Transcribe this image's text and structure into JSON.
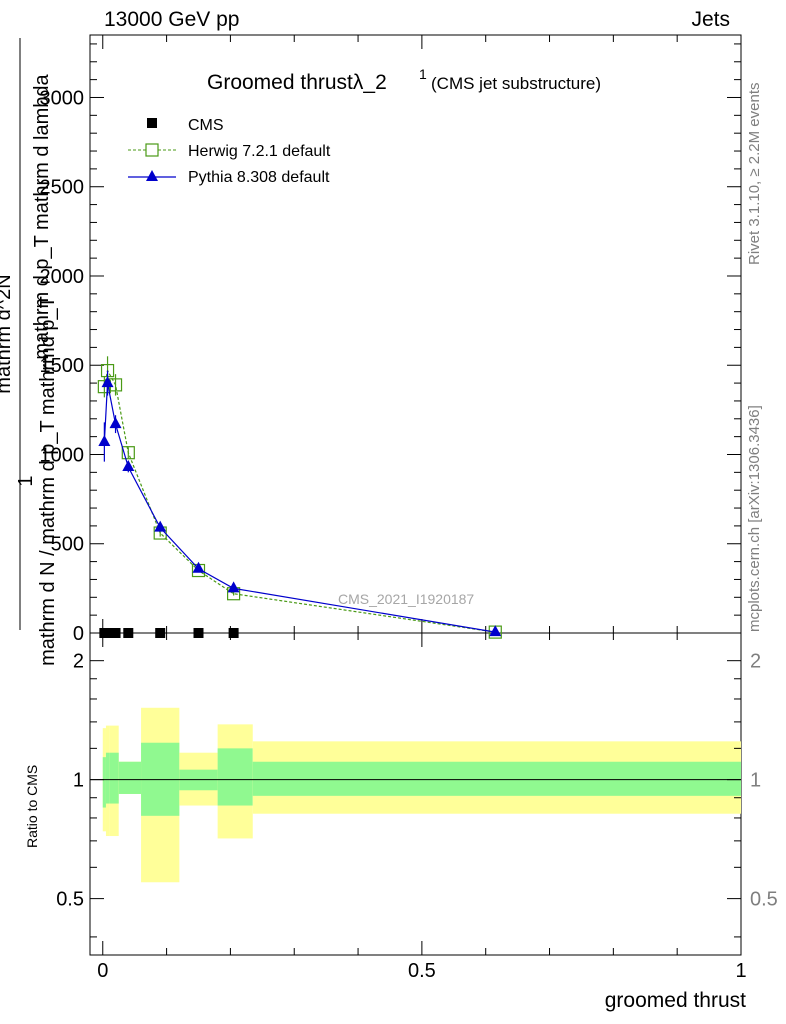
{
  "header": {
    "left": "13000 GeV pp",
    "right": "Jets"
  },
  "side": {
    "rivet": "Rivet 3.1.10, ≥ 2.2M events",
    "mcplots": "mcplots.cern.ch [arXiv:1306.3436]"
  },
  "chart_data": [
    {
      "type": "line",
      "title_main": "Groomed thrust",
      "title_lambda": "λ_2",
      "title_sup": "1",
      "title_paren": "(CMS jet substructure)",
      "ylabel_numer_top": "1",
      "ylabel_numer_bottom": "mathrm d N / mathrm d p_T mathrmd p_T",
      "ylabel_denom_top": "mathrm d^2N",
      "ylabel_denom_bottom": "mathrm d p_T mathrm d lambda",
      "watermark": "CMS_2021_I1920187",
      "xlim": [
        -0.02,
        1.0
      ],
      "ylim": [
        0,
        3350
      ],
      "yticks": [
        0,
        500,
        1000,
        1500,
        2000,
        2500,
        3000
      ],
      "ytick_labels": [
        "0",
        "500",
        "1000",
        "1500",
        "2000",
        "2500",
        "3000"
      ],
      "legend_position": "top-left",
      "series": [
        {
          "name": "CMS",
          "color": "#000000",
          "marker": "filled-square",
          "x": [
            0.0025,
            0.0075,
            0.0125,
            0.02,
            0.04,
            0.09,
            0.15,
            0.205
          ],
          "y": [
            0,
            0,
            0,
            0,
            0,
            0,
            0,
            0
          ]
        },
        {
          "name": "Herwig 7.2.1 default",
          "color": "#4a9a16",
          "marker": "open-square",
          "x": [
            0.0025,
            0.0075,
            0.02,
            0.04,
            0.09,
            0.15,
            0.205,
            0.615
          ],
          "y": [
            1380,
            1470,
            1390,
            1010,
            560,
            350,
            220,
            5
          ],
          "yerr": [
            60,
            80,
            60,
            30,
            20,
            10,
            10,
            2
          ]
        },
        {
          "name": "Pythia 8.308 default",
          "color": "#0000cc",
          "marker": "filled-triangle",
          "x": [
            0.0025,
            0.0075,
            0.02,
            0.04,
            0.09,
            0.15,
            0.205,
            0.615
          ],
          "y": [
            1070,
            1400,
            1170,
            930,
            590,
            360,
            250,
            5
          ],
          "yerr": [
            110,
            70,
            50,
            30,
            20,
            10,
            10,
            2
          ]
        }
      ]
    },
    {
      "type": "area",
      "ylabel": "Ratio to CMS",
      "xlabel": "groomed thrust",
      "xlim": [
        -0.02,
        1.0
      ],
      "ylim": [
        0.36,
        2.35
      ],
      "log_y": true,
      "yticks": [
        0.5,
        1,
        2
      ],
      "ytick_labels": [
        "0.5",
        "1",
        "2"
      ],
      "xticks": [
        0,
        0.5,
        1
      ],
      "xtick_labels": [
        "0",
        "0.5",
        "1"
      ],
      "reference_line": 1,
      "band_colors": {
        "stat": "#90f990",
        "total": "#ffff99"
      },
      "bins": [
        {
          "x0": 0.0,
          "x1": 0.005,
          "inner": [
            0.85,
            1.14
          ],
          "outer": [
            0.74,
            1.35
          ]
        },
        {
          "x0": 0.005,
          "x1": 0.01,
          "inner": [
            0.87,
            1.17
          ],
          "outer": [
            0.72,
            1.37
          ]
        },
        {
          "x0": 0.01,
          "x1": 0.025,
          "inner": [
            0.87,
            1.17
          ],
          "outer": [
            0.72,
            1.37
          ]
        },
        {
          "x0": 0.025,
          "x1": 0.06,
          "inner": [
            0.92,
            1.11
          ],
          "outer": [
            0.92,
            1.11
          ]
        },
        {
          "x0": 0.06,
          "x1": 0.12,
          "inner": [
            0.81,
            1.24
          ],
          "outer": [
            0.55,
            1.52
          ]
        },
        {
          "x0": 0.12,
          "x1": 0.18,
          "inner": [
            0.94,
            1.06
          ],
          "outer": [
            0.86,
            1.17
          ]
        },
        {
          "x0": 0.18,
          "x1": 0.235,
          "inner": [
            0.86,
            1.2
          ],
          "outer": [
            0.71,
            1.38
          ]
        },
        {
          "x0": 0.235,
          "x1": 1.0,
          "inner": [
            0.91,
            1.11
          ],
          "outer": [
            0.82,
            1.25
          ]
        }
      ]
    }
  ]
}
